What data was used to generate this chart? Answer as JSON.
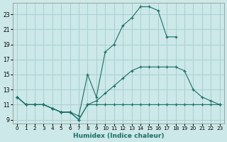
{
  "xlabel": "Humidex (Indice chaleur)",
  "bg_color": "#cce8e8",
  "grid_color": "#a8d0d0",
  "line_color": "#1a6e66",
  "line1_x": [
    0,
    1,
    2,
    3,
    4,
    5,
    6,
    7,
    8,
    9,
    10,
    11,
    12,
    13,
    14,
    15,
    16,
    17,
    18
  ],
  "line1_y": [
    12,
    11,
    11,
    11,
    10.5,
    10,
    10,
    9.5,
    15,
    12,
    18,
    19,
    21.5,
    22.5,
    24,
    24,
    23.5,
    20,
    20
  ],
  "line2_x": [
    0,
    1,
    2,
    3,
    4,
    5,
    6,
    7,
    8,
    9,
    10,
    11,
    12,
    13,
    14,
    15,
    16,
    17,
    18,
    19,
    20,
    21,
    22,
    23
  ],
  "line2_y": [
    12,
    11,
    11,
    11,
    10.5,
    10,
    10,
    9,
    11,
    11,
    11,
    11,
    11,
    11,
    11,
    11,
    11,
    11,
    11,
    11,
    11,
    11,
    11,
    11
  ],
  "line3_x": [
    0,
    1,
    2,
    3,
    4,
    5,
    6,
    7,
    8,
    9,
    10,
    11,
    12,
    13,
    14,
    15,
    16,
    17,
    18,
    19,
    20,
    21,
    22,
    23
  ],
  "line3_y": [
    12,
    11,
    11,
    11,
    10.5,
    10,
    10,
    9,
    11,
    11.5,
    12.5,
    13.5,
    14.5,
    15.5,
    16,
    16,
    16,
    16,
    16,
    15.5,
    13,
    12,
    11.5,
    11
  ],
  "xlim": [
    -0.5,
    23.5
  ],
  "ylim": [
    8.5,
    24.5
  ],
  "yticks": [
    9,
    11,
    13,
    15,
    17,
    19,
    21,
    23
  ],
  "xticks": [
    0,
    1,
    2,
    3,
    4,
    5,
    6,
    7,
    8,
    9,
    10,
    11,
    12,
    13,
    14,
    15,
    16,
    17,
    18,
    19,
    20,
    21,
    22,
    23
  ]
}
